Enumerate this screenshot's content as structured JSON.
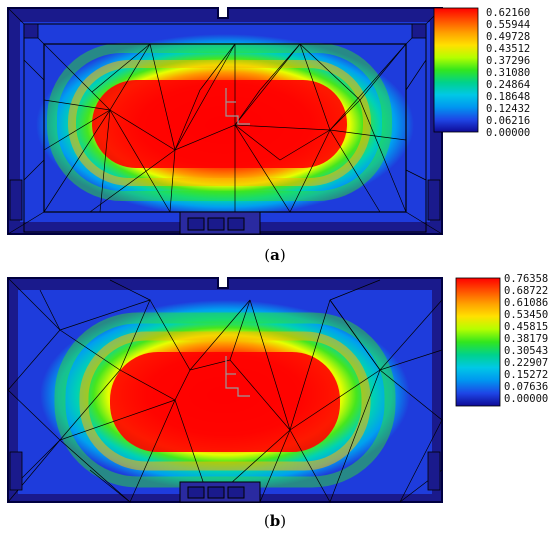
{
  "figure": {
    "panels": [
      {
        "id": "a",
        "caption_open": "(",
        "caption_letter": "a",
        "caption_close": ")",
        "legend": {
          "ticks": [
            "0.62160",
            "0.55944",
            "0.49728",
            "0.43512",
            "0.37296",
            "0.31080",
            "0.24864",
            "0.18648",
            "0.12432",
            "0.06216",
            "0.00000"
          ]
        }
      },
      {
        "id": "b",
        "caption_open": "(",
        "caption_letter": "b",
        "caption_close": ")",
        "legend": {
          "ticks": [
            "0.76358",
            "0.68722",
            "0.61086",
            "0.53450",
            "0.45815",
            "0.38179",
            "0.30543",
            "0.22907",
            "0.15272",
            "0.07636",
            "0.00000"
          ]
        }
      }
    ],
    "colors": {
      "scale": [
        "#ff0000",
        "#ff5000",
        "#ffa000",
        "#ffe100",
        "#b4ff00",
        "#32e61e",
        "#00d28c",
        "#00c8e6",
        "#0096f0",
        "#1e46e6",
        "#0f0a96"
      ],
      "boundary": "#000040",
      "mesh": "#000000"
    }
  }
}
